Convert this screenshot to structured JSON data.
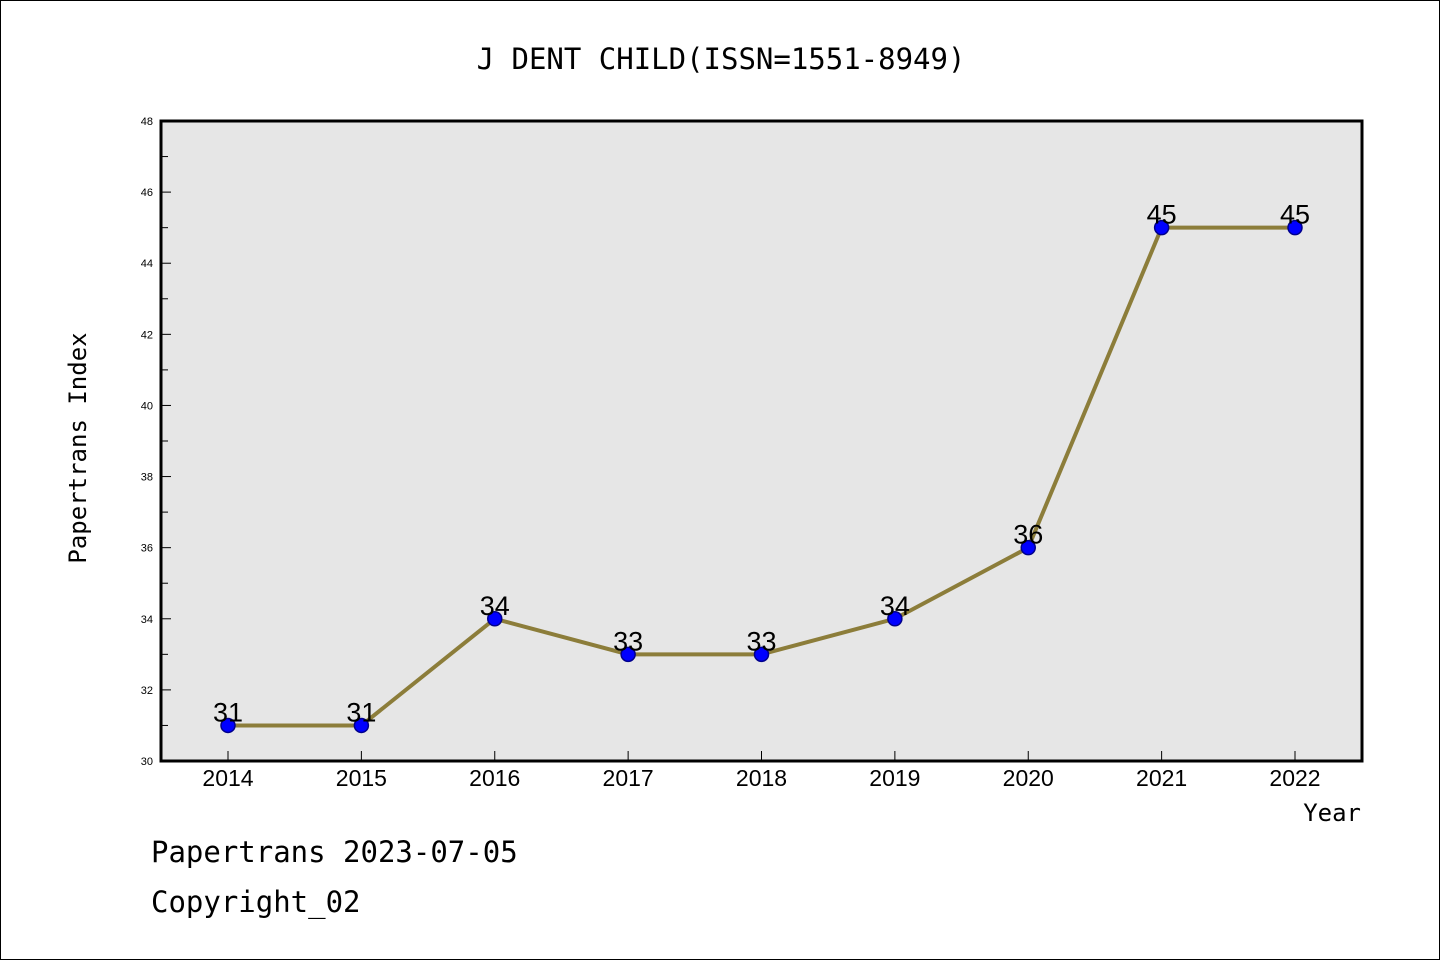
{
  "colors": {
    "plot_background": "#e6e6e6",
    "line": "#8c7d3a",
    "marker_fill": "#0000ff",
    "marker_stroke": "#00008b",
    "frame": "#000000"
  },
  "footer": {
    "date_line": "Papertrans 2023-07-05",
    "copyright_line": "Copyright_02"
  },
  "chart_data": {
    "type": "line",
    "title": "J DENT CHILD(ISSN=1551-8949)",
    "xlabel": "Year",
    "ylabel": "Papertrans Index",
    "categories": [
      "2014",
      "2015",
      "2016",
      "2017",
      "2018",
      "2019",
      "2020",
      "2021",
      "2022"
    ],
    "values": [
      31,
      31,
      34,
      33,
      33,
      34,
      36,
      45,
      45
    ],
    "data_labels": [
      "31",
      "31",
      "34",
      "33",
      "33",
      "34",
      "36",
      "45",
      "45"
    ],
    "ylim": [
      30,
      48
    ],
    "yticks": [
      "30",
      "32",
      "34",
      "36",
      "38",
      "40",
      "42",
      "44",
      "46",
      "48"
    ],
    "grid": false,
    "legend": "none"
  }
}
